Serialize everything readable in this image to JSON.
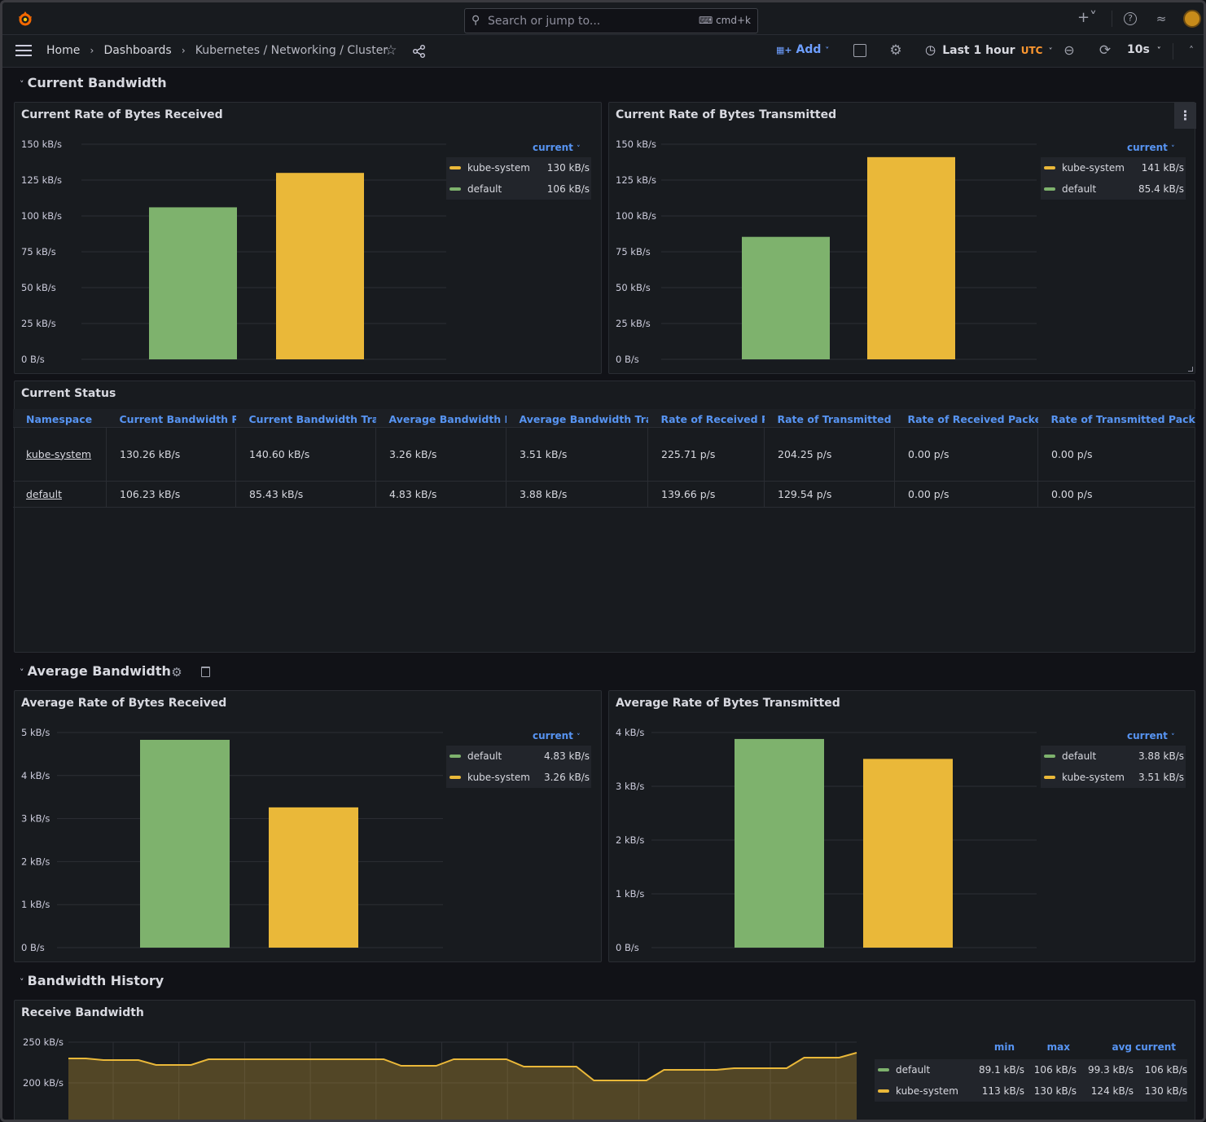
{
  "topbar": {
    "search_placeholder": "Search or jump to...",
    "shortcut": "cmd+k"
  },
  "breadcrumb": {
    "home": "Home",
    "dashboards": "Dashboards",
    "current": "Kubernetes / Networking / Cluster"
  },
  "toolbar": {
    "add_label": "Add",
    "time_range": "Last 1 hour",
    "timezone": "UTC",
    "refresh_interval": "10s"
  },
  "rows": {
    "current_bandwidth": "Current Bandwidth",
    "average_bandwidth": "Average Bandwidth",
    "bandwidth_history": "Bandwidth History"
  },
  "panels": {
    "cur_rx": {
      "title": "Current Rate of Bytes Received",
      "legend_header": "current",
      "yticks": [
        "150 kB/s",
        "125 kB/s",
        "100 kB/s",
        "75 kB/s",
        "50 kB/s",
        "25 kB/s",
        "0 B/s"
      ],
      "legend": [
        {
          "name": "kube-system",
          "value": "130 kB/s",
          "color": "#eab839"
        },
        {
          "name": "default",
          "value": "106 kB/s",
          "color": "#7eb26d"
        }
      ]
    },
    "cur_tx": {
      "title": "Current Rate of Bytes Transmitted",
      "legend_header": "current",
      "yticks": [
        "150 kB/s",
        "125 kB/s",
        "100 kB/s",
        "75 kB/s",
        "50 kB/s",
        "25 kB/s",
        "0 B/s"
      ],
      "legend": [
        {
          "name": "kube-system",
          "value": "141 kB/s",
          "color": "#eab839"
        },
        {
          "name": "default",
          "value": "85.4 kB/s",
          "color": "#7eb26d"
        }
      ]
    },
    "status": {
      "title": "Current Status",
      "columns": [
        "Namespace",
        "Current Bandwidth Received",
        "Current Bandwidth Transmitted",
        "Average Bandwidth Received",
        "Average Bandwidth Transmitted",
        "Rate of Received Packets",
        "Rate of Transmitted Packets",
        "Rate of Received Packets Dropped",
        "Rate of Transmitted Packets Dropped"
      ],
      "rows": [
        [
          "kube-system",
          "130.26 kB/s",
          "140.60 kB/s",
          "3.26 kB/s",
          "3.51 kB/s",
          "225.71 p/s",
          "204.25 p/s",
          "0.00 p/s",
          "0.00 p/s"
        ],
        [
          "default",
          "106.23 kB/s",
          "85.43 kB/s",
          "4.83 kB/s",
          "3.88 kB/s",
          "139.66 p/s",
          "129.54 p/s",
          "0.00 p/s",
          "0.00 p/s"
        ]
      ]
    },
    "avg_rx": {
      "title": "Average Rate of Bytes Received",
      "legend_header": "current",
      "yticks": [
        "5 kB/s",
        "4 kB/s",
        "3 kB/s",
        "2 kB/s",
        "1 kB/s",
        "0 B/s"
      ],
      "legend": [
        {
          "name": "default",
          "value": "4.83 kB/s",
          "color": "#7eb26d"
        },
        {
          "name": "kube-system",
          "value": "3.26 kB/s",
          "color": "#eab839"
        }
      ]
    },
    "avg_tx": {
      "title": "Average Rate of Bytes Transmitted",
      "legend_header": "current",
      "yticks": [
        "4 kB/s",
        "3 kB/s",
        "2 kB/s",
        "1 kB/s",
        "0 B/s"
      ],
      "legend": [
        {
          "name": "default",
          "value": "3.88 kB/s",
          "color": "#7eb26d"
        },
        {
          "name": "kube-system",
          "value": "3.51 kB/s",
          "color": "#eab839"
        }
      ]
    },
    "rx_hist": {
      "title": "Receive Bandwidth",
      "yticks": [
        "250 kB/s",
        "200 kB/s"
      ],
      "legend_cols": [
        "min",
        "max",
        "avg",
        "current"
      ],
      "legend": [
        {
          "name": "default",
          "min": "89.1 kB/s",
          "max": "106 kB/s",
          "avg": "99.3 kB/s",
          "current": "106 kB/s",
          "color": "#7eb26d"
        },
        {
          "name": "kube-system",
          "min": "113 kB/s",
          "max": "130 kB/s",
          "avg": "124 kB/s",
          "current": "130 kB/s",
          "color": "#eab839"
        }
      ]
    }
  },
  "chart_data": [
    {
      "type": "bar",
      "title": "Current Rate of Bytes Received",
      "categories": [
        "default",
        "kube-system"
      ],
      "values": [
        106,
        130
      ],
      "unit": "kB/s",
      "ylim": [
        0,
        150
      ],
      "colors": [
        "#7eb26d",
        "#eab839"
      ]
    },
    {
      "type": "bar",
      "title": "Current Rate of Bytes Transmitted",
      "categories": [
        "default",
        "kube-system"
      ],
      "values": [
        85.4,
        141
      ],
      "unit": "kB/s",
      "ylim": [
        0,
        150
      ],
      "colors": [
        "#7eb26d",
        "#eab839"
      ]
    },
    {
      "type": "bar",
      "title": "Average Rate of Bytes Received",
      "categories": [
        "default",
        "kube-system"
      ],
      "values": [
        4.83,
        3.26
      ],
      "unit": "kB/s",
      "ylim": [
        0,
        5
      ],
      "colors": [
        "#7eb26d",
        "#eab839"
      ]
    },
    {
      "type": "bar",
      "title": "Average Rate of Bytes Transmitted",
      "categories": [
        "default",
        "kube-system"
      ],
      "values": [
        3.88,
        3.51
      ],
      "unit": "kB/s",
      "ylim": [
        0,
        4
      ],
      "colors": [
        "#7eb26d",
        "#eab839"
      ]
    },
    {
      "type": "area",
      "title": "Receive Bandwidth",
      "unit": "kB/s",
      "ylim": [
        150,
        250
      ],
      "series": [
        {
          "name": "kube-system",
          "color": "#eab839",
          "values": [
            230,
            230,
            228,
            228,
            228,
            222,
            222,
            222,
            229,
            229,
            229,
            229,
            229,
            229,
            229,
            229,
            229,
            229,
            229,
            221,
            221,
            221,
            229,
            229,
            229,
            229,
            220,
            220,
            220,
            220,
            203,
            203,
            203,
            203,
            216,
            216,
            216,
            216,
            218,
            218,
            218,
            218,
            231,
            231,
            231,
            237
          ]
        }
      ]
    }
  ]
}
